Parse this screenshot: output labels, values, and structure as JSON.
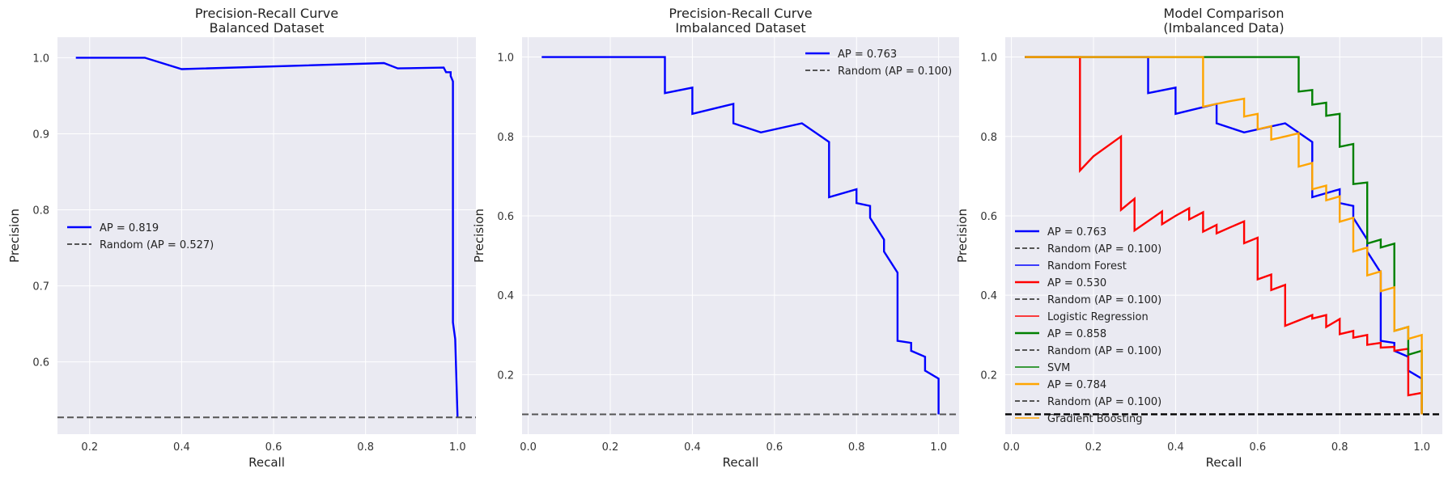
{
  "colors": {
    "plot_bg": "#eaeaf2",
    "grid": "#ffffff",
    "random": "#555555",
    "baseline_black": "#000000"
  },
  "chart_data": [
    {
      "type": "line",
      "title": "Precision-Recall Curve",
      "subtitle": "Balanced Dataset",
      "xlabel": "Recall",
      "ylabel": "Precision",
      "xlim": [
        0.13,
        1.04
      ],
      "ylim": [
        0.505,
        1.027
      ],
      "xticks": [
        "0.2",
        "0.4",
        "0.6",
        "0.8",
        "1.0"
      ],
      "yticks": [
        "0.6",
        "0.7",
        "0.8",
        "0.9",
        "1.0"
      ],
      "grid": true,
      "legend_position": "center-left",
      "series": [
        {
          "name": "AP = 0.819",
          "color": "#0000ff",
          "style": "solid",
          "x": [
            0.17,
            0.32,
            0.4,
            0.84,
            0.87,
            0.97,
            0.975,
            0.985,
            0.985,
            0.99,
            0.99,
            0.995,
            1.0
          ],
          "y": [
            1.0,
            1.0,
            0.985,
            0.993,
            0.986,
            0.987,
            0.981,
            0.981,
            0.976,
            0.969,
            0.652,
            0.63,
            0.527
          ]
        },
        {
          "name": "Random (AP = 0.527)",
          "color": "#555555",
          "style": "dashed",
          "hline": 0.527
        }
      ]
    },
    {
      "type": "line",
      "title": "Precision-Recall Curve",
      "subtitle": "Imbalanced Dataset",
      "xlabel": "Recall",
      "ylabel": "Precision",
      "xlim": [
        -0.015,
        1.05
      ],
      "ylim": [
        0.05,
        1.05
      ],
      "xticks": [
        "0.0",
        "0.2",
        "0.4",
        "0.6",
        "0.8",
        "1.0"
      ],
      "yticks": [
        "0.2",
        "0.4",
        "0.6",
        "0.8",
        "1.0"
      ],
      "grid": true,
      "legend_position": "top-right",
      "series": [
        {
          "name": "AP = 0.763",
          "color": "#0000ff",
          "style": "solid",
          "x": [
            0.033,
            0.333,
            0.333,
            0.4,
            0.4,
            0.5,
            0.5,
            0.567,
            0.667,
            0.733,
            0.733,
            0.8,
            0.8,
            0.833,
            0.833,
            0.867,
            0.867,
            0.9,
            0.9,
            0.933,
            0.933,
            0.967,
            0.967,
            1.0,
            1.0
          ],
          "y": [
            1.0,
            1.0,
            0.909,
            0.923,
            0.857,
            0.882,
            0.833,
            0.81,
            0.833,
            0.786,
            0.647,
            0.667,
            0.632,
            0.625,
            0.595,
            0.54,
            0.51,
            0.457,
            0.285,
            0.28,
            0.26,
            0.245,
            0.21,
            0.19,
            0.1
          ]
        },
        {
          "name": "Random (AP = 0.100)",
          "color": "#555555",
          "style": "dashed",
          "hline": 0.1
        }
      ]
    },
    {
      "type": "line",
      "title": "Model Comparison",
      "subtitle": "(Imbalanced Data)",
      "xlabel": "Recall",
      "ylabel": "Precision",
      "xlim": [
        -0.015,
        1.05
      ],
      "ylim": [
        0.05,
        1.05
      ],
      "xticks": [
        "0.0",
        "0.2",
        "0.4",
        "0.6",
        "0.8",
        "1.0"
      ],
      "yticks": [
        "0.2",
        "0.4",
        "0.6",
        "0.8",
        "1.0"
      ],
      "grid": true,
      "legend_position": "lower-left",
      "baseline": 0.1,
      "series": [
        {
          "name": "AP = 0.763",
          "color": "#0000ff",
          "style": "solid",
          "width": 2.4,
          "x": [
            0.033,
            0.333,
            0.333,
            0.4,
            0.4,
            0.5,
            0.5,
            0.567,
            0.667,
            0.733,
            0.733,
            0.8,
            0.8,
            0.833,
            0.833,
            0.867,
            0.867,
            0.9,
            0.9,
            0.933,
            0.933,
            0.967,
            0.967,
            1.0,
            1.0
          ],
          "y": [
            1.0,
            1.0,
            0.909,
            0.923,
            0.857,
            0.882,
            0.833,
            0.81,
            0.833,
            0.786,
            0.647,
            0.667,
            0.632,
            0.625,
            0.595,
            0.54,
            0.51,
            0.457,
            0.285,
            0.28,
            0.26,
            0.245,
            0.21,
            0.19,
            0.1
          ]
        },
        {
          "name": "Random (AP = 0.100)",
          "color": "#555555",
          "style": "dashed",
          "legend_only": true
        },
        {
          "name": "Random Forest",
          "color": "#0000ff",
          "style": "solid",
          "width": 1.6,
          "legend_only": true
        },
        {
          "name": "AP = 0.530",
          "color": "#ff0000",
          "style": "solid",
          "width": 2.4,
          "x": [
            0.033,
            0.167,
            0.167,
            0.2,
            0.267,
            0.267,
            0.3,
            0.3,
            0.367,
            0.367,
            0.4,
            0.433,
            0.433,
            0.467,
            0.467,
            0.5,
            0.5,
            0.533,
            0.567,
            0.567,
            0.6,
            0.6,
            0.633,
            0.633,
            0.667,
            0.667,
            0.733,
            0.733,
            0.767,
            0.767,
            0.8,
            0.8,
            0.833,
            0.833,
            0.867,
            0.867,
            0.9,
            0.9,
            0.933,
            0.933,
            0.967,
            0.967,
            1.0,
            1.0
          ],
          "y": [
            1.0,
            1.0,
            0.714,
            0.75,
            0.8,
            0.615,
            0.643,
            0.563,
            0.611,
            0.579,
            0.6,
            0.619,
            0.591,
            0.609,
            0.56,
            0.577,
            0.556,
            0.571,
            0.586,
            0.531,
            0.545,
            0.44,
            0.452,
            0.413,
            0.426,
            0.323,
            0.35,
            0.341,
            0.35,
            0.32,
            0.34,
            0.302,
            0.31,
            0.293,
            0.3,
            0.275,
            0.28,
            0.268,
            0.27,
            0.26,
            0.265,
            0.148,
            0.154,
            0.1
          ]
        },
        {
          "name": "Random (AP = 0.100)",
          "color": "#555555",
          "style": "dashed",
          "legend_only": true
        },
        {
          "name": "Logistic Regression",
          "color": "#ff0000",
          "style": "solid",
          "width": 1.6,
          "legend_only": true
        },
        {
          "name": "AP = 0.858",
          "color": "#008000",
          "style": "solid",
          "width": 2.4,
          "x": [
            0.033,
            0.7,
            0.7,
            0.733,
            0.733,
            0.767,
            0.767,
            0.8,
            0.8,
            0.833,
            0.833,
            0.867,
            0.867,
            0.9,
            0.9,
            0.933,
            0.933,
            0.967,
            0.967,
            1.0,
            1.0
          ],
          "y": [
            1.0,
            1.0,
            0.913,
            0.917,
            0.88,
            0.885,
            0.852,
            0.857,
            0.774,
            0.781,
            0.68,
            0.684,
            0.53,
            0.54,
            0.52,
            0.53,
            0.31,
            0.32,
            0.25,
            0.26,
            0.1
          ]
        },
        {
          "name": "Random (AP = 0.100)",
          "color": "#555555",
          "style": "dashed",
          "legend_only": true
        },
        {
          "name": "SVM",
          "color": "#008000",
          "style": "solid",
          "width": 1.6,
          "legend_only": true
        },
        {
          "name": "AP = 0.784",
          "color": "#ffa500",
          "style": "solid",
          "width": 2.4,
          "x": [
            0.033,
            0.467,
            0.467,
            0.5,
            0.533,
            0.567,
            0.567,
            0.6,
            0.6,
            0.633,
            0.633,
            0.667,
            0.7,
            0.7,
            0.733,
            0.733,
            0.767,
            0.767,
            0.8,
            0.8,
            0.833,
            0.833,
            0.867,
            0.867,
            0.9,
            0.9,
            0.933,
            0.933,
            0.967,
            0.967,
            1.0,
            1.0
          ],
          "y": [
            1.0,
            1.0,
            0.875,
            0.882,
            0.889,
            0.895,
            0.85,
            0.857,
            0.818,
            0.826,
            0.792,
            0.8,
            0.808,
            0.724,
            0.733,
            0.667,
            0.676,
            0.639,
            0.649,
            0.585,
            0.595,
            0.51,
            0.52,
            0.45,
            0.46,
            0.41,
            0.42,
            0.31,
            0.32,
            0.29,
            0.3,
            0.1
          ]
        },
        {
          "name": "Random (AP = 0.100)",
          "color": "#555555",
          "style": "dashed",
          "legend_only": true
        },
        {
          "name": "Gradient Boosting",
          "color": "#ffa500",
          "style": "solid",
          "width": 1.6,
          "legend_only": true
        }
      ]
    }
  ]
}
